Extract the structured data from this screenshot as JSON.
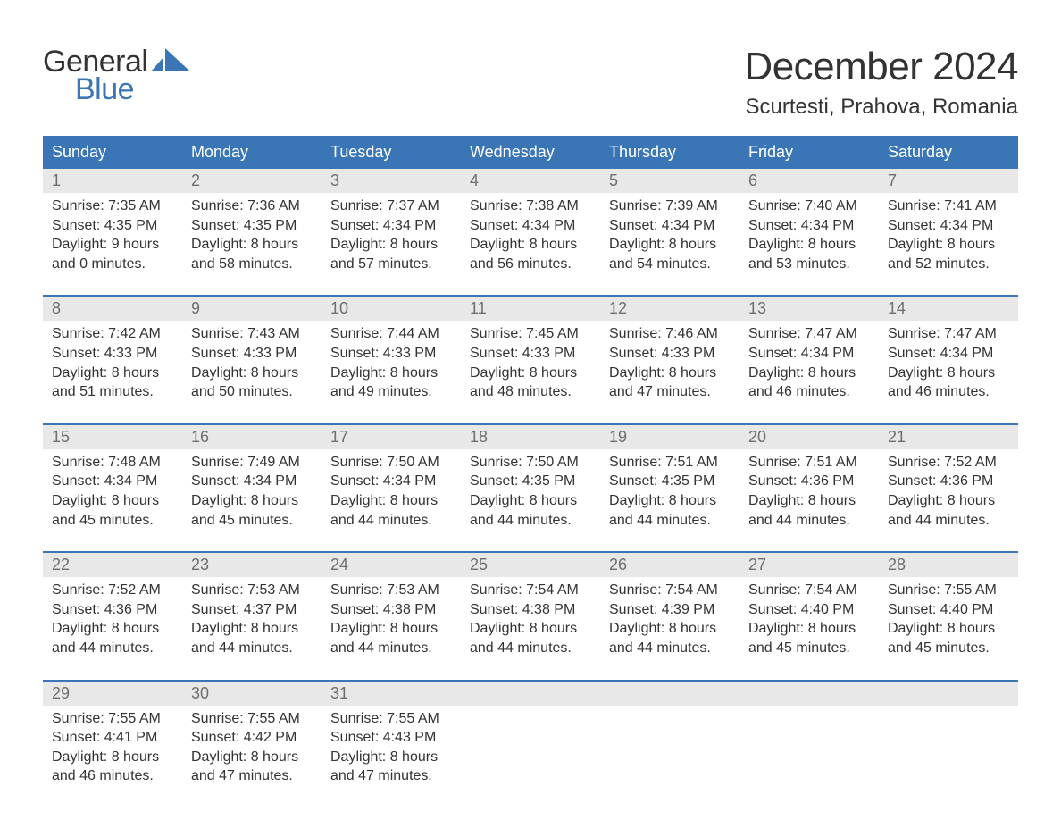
{
  "logo": {
    "word1": "General",
    "word2": "Blue",
    "brand_color": "#3a76b6"
  },
  "title": "December 2024",
  "location": "Scurtesti, Prahova, Romania",
  "colors": {
    "header_bg": "#3a76b6",
    "header_text": "#ffffff",
    "daynum_bg": "#e8e8e8",
    "daynum_text": "#6e6e6e",
    "body_text": "#333333",
    "week_divider": "#3a76b6",
    "page_bg": "#ffffff"
  },
  "typography": {
    "month_title_fontsize": 44,
    "location_fontsize": 24,
    "day_header_fontsize": 18,
    "daynum_fontsize": 18,
    "body_fontsize": 16
  },
  "day_headers": [
    "Sunday",
    "Monday",
    "Tuesday",
    "Wednesday",
    "Thursday",
    "Friday",
    "Saturday"
  ],
  "weeks": [
    [
      {
        "n": "1",
        "sunrise": "Sunrise: 7:35 AM",
        "sunset": "Sunset: 4:35 PM",
        "d1": "Daylight: 9 hours",
        "d2": "and 0 minutes."
      },
      {
        "n": "2",
        "sunrise": "Sunrise: 7:36 AM",
        "sunset": "Sunset: 4:35 PM",
        "d1": "Daylight: 8 hours",
        "d2": "and 58 minutes."
      },
      {
        "n": "3",
        "sunrise": "Sunrise: 7:37 AM",
        "sunset": "Sunset: 4:34 PM",
        "d1": "Daylight: 8 hours",
        "d2": "and 57 minutes."
      },
      {
        "n": "4",
        "sunrise": "Sunrise: 7:38 AM",
        "sunset": "Sunset: 4:34 PM",
        "d1": "Daylight: 8 hours",
        "d2": "and 56 minutes."
      },
      {
        "n": "5",
        "sunrise": "Sunrise: 7:39 AM",
        "sunset": "Sunset: 4:34 PM",
        "d1": "Daylight: 8 hours",
        "d2": "and 54 minutes."
      },
      {
        "n": "6",
        "sunrise": "Sunrise: 7:40 AM",
        "sunset": "Sunset: 4:34 PM",
        "d1": "Daylight: 8 hours",
        "d2": "and 53 minutes."
      },
      {
        "n": "7",
        "sunrise": "Sunrise: 7:41 AM",
        "sunset": "Sunset: 4:34 PM",
        "d1": "Daylight: 8 hours",
        "d2": "and 52 minutes."
      }
    ],
    [
      {
        "n": "8",
        "sunrise": "Sunrise: 7:42 AM",
        "sunset": "Sunset: 4:33 PM",
        "d1": "Daylight: 8 hours",
        "d2": "and 51 minutes."
      },
      {
        "n": "9",
        "sunrise": "Sunrise: 7:43 AM",
        "sunset": "Sunset: 4:33 PM",
        "d1": "Daylight: 8 hours",
        "d2": "and 50 minutes."
      },
      {
        "n": "10",
        "sunrise": "Sunrise: 7:44 AM",
        "sunset": "Sunset: 4:33 PM",
        "d1": "Daylight: 8 hours",
        "d2": "and 49 minutes."
      },
      {
        "n": "11",
        "sunrise": "Sunrise: 7:45 AM",
        "sunset": "Sunset: 4:33 PM",
        "d1": "Daylight: 8 hours",
        "d2": "and 48 minutes."
      },
      {
        "n": "12",
        "sunrise": "Sunrise: 7:46 AM",
        "sunset": "Sunset: 4:33 PM",
        "d1": "Daylight: 8 hours",
        "d2": "and 47 minutes."
      },
      {
        "n": "13",
        "sunrise": "Sunrise: 7:47 AM",
        "sunset": "Sunset: 4:34 PM",
        "d1": "Daylight: 8 hours",
        "d2": "and 46 minutes."
      },
      {
        "n": "14",
        "sunrise": "Sunrise: 7:47 AM",
        "sunset": "Sunset: 4:34 PM",
        "d1": "Daylight: 8 hours",
        "d2": "and 46 minutes."
      }
    ],
    [
      {
        "n": "15",
        "sunrise": "Sunrise: 7:48 AM",
        "sunset": "Sunset: 4:34 PM",
        "d1": "Daylight: 8 hours",
        "d2": "and 45 minutes."
      },
      {
        "n": "16",
        "sunrise": "Sunrise: 7:49 AM",
        "sunset": "Sunset: 4:34 PM",
        "d1": "Daylight: 8 hours",
        "d2": "and 45 minutes."
      },
      {
        "n": "17",
        "sunrise": "Sunrise: 7:50 AM",
        "sunset": "Sunset: 4:34 PM",
        "d1": "Daylight: 8 hours",
        "d2": "and 44 minutes."
      },
      {
        "n": "18",
        "sunrise": "Sunrise: 7:50 AM",
        "sunset": "Sunset: 4:35 PM",
        "d1": "Daylight: 8 hours",
        "d2": "and 44 minutes."
      },
      {
        "n": "19",
        "sunrise": "Sunrise: 7:51 AM",
        "sunset": "Sunset: 4:35 PM",
        "d1": "Daylight: 8 hours",
        "d2": "and 44 minutes."
      },
      {
        "n": "20",
        "sunrise": "Sunrise: 7:51 AM",
        "sunset": "Sunset: 4:36 PM",
        "d1": "Daylight: 8 hours",
        "d2": "and 44 minutes."
      },
      {
        "n": "21",
        "sunrise": "Sunrise: 7:52 AM",
        "sunset": "Sunset: 4:36 PM",
        "d1": "Daylight: 8 hours",
        "d2": "and 44 minutes."
      }
    ],
    [
      {
        "n": "22",
        "sunrise": "Sunrise: 7:52 AM",
        "sunset": "Sunset: 4:36 PM",
        "d1": "Daylight: 8 hours",
        "d2": "and 44 minutes."
      },
      {
        "n": "23",
        "sunrise": "Sunrise: 7:53 AM",
        "sunset": "Sunset: 4:37 PM",
        "d1": "Daylight: 8 hours",
        "d2": "and 44 minutes."
      },
      {
        "n": "24",
        "sunrise": "Sunrise: 7:53 AM",
        "sunset": "Sunset: 4:38 PM",
        "d1": "Daylight: 8 hours",
        "d2": "and 44 minutes."
      },
      {
        "n": "25",
        "sunrise": "Sunrise: 7:54 AM",
        "sunset": "Sunset: 4:38 PM",
        "d1": "Daylight: 8 hours",
        "d2": "and 44 minutes."
      },
      {
        "n": "26",
        "sunrise": "Sunrise: 7:54 AM",
        "sunset": "Sunset: 4:39 PM",
        "d1": "Daylight: 8 hours",
        "d2": "and 44 minutes."
      },
      {
        "n": "27",
        "sunrise": "Sunrise: 7:54 AM",
        "sunset": "Sunset: 4:40 PM",
        "d1": "Daylight: 8 hours",
        "d2": "and 45 minutes."
      },
      {
        "n": "28",
        "sunrise": "Sunrise: 7:55 AM",
        "sunset": "Sunset: 4:40 PM",
        "d1": "Daylight: 8 hours",
        "d2": "and 45 minutes."
      }
    ],
    [
      {
        "n": "29",
        "sunrise": "Sunrise: 7:55 AM",
        "sunset": "Sunset: 4:41 PM",
        "d1": "Daylight: 8 hours",
        "d2": "and 46 minutes."
      },
      {
        "n": "30",
        "sunrise": "Sunrise: 7:55 AM",
        "sunset": "Sunset: 4:42 PM",
        "d1": "Daylight: 8 hours",
        "d2": "and 47 minutes."
      },
      {
        "n": "31",
        "sunrise": "Sunrise: 7:55 AM",
        "sunset": "Sunset: 4:43 PM",
        "d1": "Daylight: 8 hours",
        "d2": "and 47 minutes."
      },
      {
        "empty": true
      },
      {
        "empty": true
      },
      {
        "empty": true
      },
      {
        "empty": true
      }
    ]
  ]
}
